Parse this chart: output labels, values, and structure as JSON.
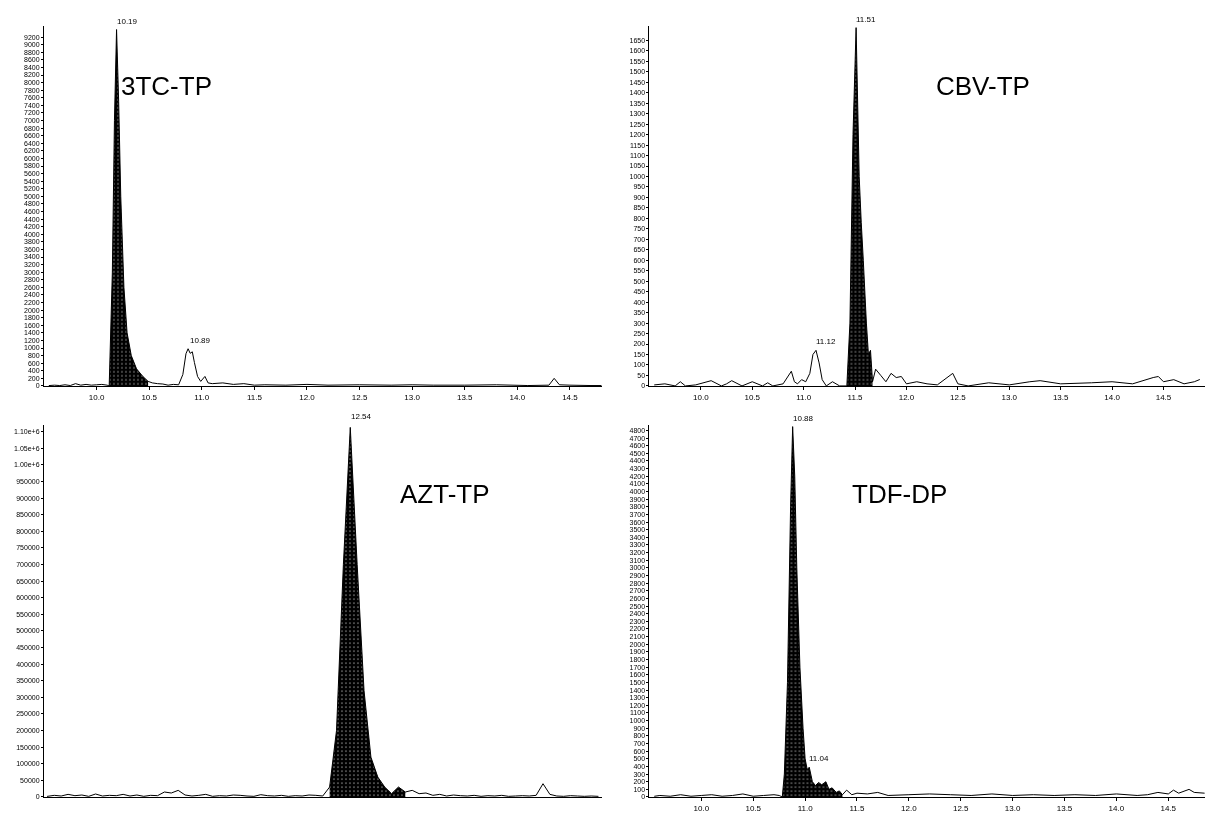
{
  "chart_data": [
    {
      "type": "line",
      "title": "3TC-TP",
      "xlim": [
        9.5,
        14.8
      ],
      "ylim": [
        0,
        9500
      ],
      "xticks": [
        {
          "value": 10,
          "label": "10.0"
        },
        {
          "value": 10.5,
          "label": "10.5"
        },
        {
          "value": 11,
          "label": "11.0"
        },
        {
          "value": 11.5,
          "label": "11.5"
        },
        {
          "value": 12,
          "label": "12.0"
        },
        {
          "value": 12.5,
          "label": "12.5"
        },
        {
          "value": 13,
          "label": "13.0"
        },
        {
          "value": 13.5,
          "label": "13.5"
        },
        {
          "value": 14,
          "label": "14.0"
        },
        {
          "value": 14.5,
          "label": "14.5"
        }
      ],
      "yticks": [
        0,
        200,
        400,
        600,
        800,
        1000,
        1200,
        1400,
        1600,
        1800,
        2000,
        2200,
        2400,
        2600,
        2800,
        3000,
        3200,
        3400,
        3600,
        3800,
        4000,
        4200,
        4400,
        4600,
        4800,
        5000,
        5200,
        5400,
        5600,
        5800,
        6000,
        6200,
        6400,
        6600,
        6800,
        7000,
        7200,
        7400,
        7600,
        7800,
        8000,
        8200,
        8400,
        8600,
        8800,
        9000,
        9200
      ],
      "annotations": [
        {
          "text": "10.19",
          "x": 10.19,
          "y": 9400
        },
        {
          "text": "10.89",
          "x": 10.89,
          "y": 980
        }
      ],
      "series": [
        {
          "type": "area",
          "color": "#000000",
          "x": [
            10.12,
            10.15,
            10.17,
            10.19,
            10.21,
            10.23,
            10.26,
            10.29,
            10.33,
            10.38,
            10.44,
            10.49
          ],
          "values": [
            0,
            3000,
            7000,
            9400,
            7500,
            5000,
            2600,
            1400,
            800,
            450,
            250,
            120
          ]
        },
        {
          "color": "#000000",
          "x": [
            9.55,
            9.6,
            9.65,
            9.7,
            9.75,
            9.8,
            9.85,
            9.9,
            9.95,
            10.0,
            10.05,
            10.1,
            10.12,
            10.15,
            10.17,
            10.19,
            10.21,
            10.23,
            10.26,
            10.29,
            10.33,
            10.38,
            10.44,
            10.49,
            10.53,
            10.58,
            10.63,
            10.68,
            10.73,
            10.78,
            10.82,
            10.85,
            10.87,
            10.89,
            10.91,
            10.93,
            10.96,
            10.99,
            11.03,
            11.06,
            11.1,
            11.2,
            11.3,
            11.4,
            11.5,
            11.6,
            11.8,
            12.0,
            12.2,
            12.5,
            12.8,
            13.0,
            13.2,
            13.5,
            13.8,
            14.1,
            14.3,
            14.35,
            14.4,
            14.5,
            14.7,
            14.8
          ],
          "values": [
            10,
            20,
            10,
            30,
            10,
            60,
            20,
            40,
            20,
            30,
            40,
            20,
            0,
            3000,
            7000,
            9400,
            7500,
            5000,
            2600,
            1400,
            800,
            450,
            250,
            120,
            80,
            60,
            50,
            20,
            40,
            30,
            300,
            850,
            980,
            860,
            900,
            620,
            250,
            120,
            250,
            80,
            60,
            80,
            40,
            60,
            20,
            30,
            20,
            40,
            20,
            30,
            20,
            30,
            20,
            20,
            30,
            10,
            20,
            200,
            30,
            20,
            10,
            10
          ]
        }
      ]
    },
    {
      "type": "line",
      "title": "CBV-TP",
      "xlim": [
        9.5,
        14.9
      ],
      "ylim": [
        0,
        1720
      ],
      "xticks": [
        {
          "value": 10,
          "label": "10.0"
        },
        {
          "value": 10.5,
          "label": "10.5"
        },
        {
          "value": 11,
          "label": "11.0"
        },
        {
          "value": 11.5,
          "label": "11.5"
        },
        {
          "value": 12,
          "label": "12.0"
        },
        {
          "value": 12.5,
          "label": "12.5"
        },
        {
          "value": 13,
          "label": "13.0"
        },
        {
          "value": 13.5,
          "label": "13.5"
        },
        {
          "value": 14,
          "label": "14.0"
        },
        {
          "value": 14.5,
          "label": "14.5"
        }
      ],
      "yticks": [
        0,
        50,
        100,
        150,
        200,
        250,
        300,
        350,
        400,
        450,
        500,
        550,
        600,
        650,
        700,
        750,
        800,
        850,
        900,
        950,
        1000,
        1050,
        1100,
        1150,
        1200,
        1250,
        1300,
        1350,
        1400,
        1450,
        1500,
        1550,
        1600,
        1650
      ],
      "annotations": [
        {
          "text": "11.51",
          "x": 11.51,
          "y": 1711
        },
        {
          "text": "11.12",
          "x": 11.12,
          "y": 170
        }
      ],
      "series": [
        {
          "type": "area",
          "color": "#000000",
          "x": [
            11.42,
            11.45,
            11.48,
            11.51,
            11.54,
            11.56,
            11.58,
            11.61,
            11.63,
            11.65,
            11.67
          ],
          "values": [
            0,
            300,
            1200,
            1711,
            1000,
            780,
            600,
            300,
            150,
            170,
            20
          ]
        },
        {
          "color": "#000000",
          "x": [
            9.55,
            9.65,
            9.75,
            9.8,
            9.85,
            9.95,
            10.1,
            10.2,
            10.25,
            10.3,
            10.4,
            10.5,
            10.6,
            10.65,
            10.7,
            10.8,
            10.88,
            10.91,
            10.94,
            10.98,
            11.02,
            11.06,
            11.09,
            11.12,
            11.15,
            11.18,
            11.22,
            11.28,
            11.35,
            11.42,
            11.45,
            11.48,
            11.51,
            11.54,
            11.56,
            11.58,
            11.61,
            11.63,
            11.65,
            11.67,
            11.7,
            11.75,
            11.8,
            11.85,
            11.9,
            11.95,
            12.0,
            12.1,
            12.2,
            12.3,
            12.45,
            12.5,
            12.6,
            12.8,
            13.0,
            13.2,
            13.3,
            13.5,
            13.8,
            14.0,
            14.2,
            14.4,
            14.45,
            14.5,
            14.6,
            14.7,
            14.8,
            14.85
          ],
          "values": [
            5,
            10,
            0,
            20,
            0,
            5,
            25,
            0,
            10,
            25,
            0,
            20,
            0,
            15,
            0,
            10,
            70,
            20,
            10,
            30,
            20,
            60,
            150,
            170,
            110,
            30,
            0,
            20,
            0,
            0,
            300,
            1200,
            1711,
            1000,
            780,
            600,
            300,
            150,
            170,
            20,
            80,
            50,
            20,
            60,
            40,
            45,
            10,
            20,
            10,
            5,
            60,
            10,
            0,
            15,
            5,
            20,
            25,
            10,
            15,
            20,
            10,
            40,
            45,
            20,
            30,
            10,
            20,
            30
          ]
        }
      ]
    },
    {
      "type": "line",
      "title": "AZT-TP",
      "ylim": [
        0,
        1120000
      ],
      "tick_labels": "y",
      "categories": [
        null,
        null,
        null,
        null,
        null,
        null,
        null,
        null,
        null,
        null,
        null,
        null,
        null,
        null,
        null,
        null,
        null,
        null,
        null,
        null,
        null,
        null,
        null,
        null,
        null,
        null,
        null,
        null,
        null,
        null,
        null,
        null,
        null,
        null,
        null,
        null,
        null,
        null,
        null,
        null,
        null,
        null,
        null,
        null,
        null,
        null,
        null,
        null,
        null,
        null,
        null,
        null,
        null,
        null,
        null,
        null,
        null,
        null,
        null,
        null,
        null,
        null,
        null,
        null,
        null,
        null,
        null,
        null,
        null,
        null,
        null,
        null,
        null,
        null,
        null,
        null,
        null,
        null,
        null,
        null,
        null
      ],
      "yticks": [
        0,
        50000,
        100000,
        150000,
        200000,
        250000,
        300000,
        350000,
        400000,
        450000,
        500000,
        550000,
        600000,
        650000,
        700000,
        750000,
        800000,
        850000,
        900000,
        950000,
        {
          "value": 1000000,
          "label": "1.00e+6"
        },
        {
          "value": 1050000,
          "label": "1.05e+6"
        },
        {
          "value": 1100000,
          "label": "1.10e+6"
        }
      ],
      "annotations": [
        "12.54"
      ],
      "series": [
        {
          "type": "area",
          "color": "#000000",
          "values": [
            null,
            null,
            null,
            null,
            null,
            null,
            null,
            null,
            null,
            null,
            null,
            null,
            null,
            null,
            null,
            null,
            null,
            null,
            null,
            null,
            null,
            null,
            null,
            null,
            null,
            null,
            null,
            null,
            null,
            null,
            null,
            null,
            null,
            null,
            null,
            null,
            null,
            null,
            null,
            null,
            null,
            30000,
            200000,
            700000,
            1113000,
            700000,
            320000,
            120000,
            60000,
            30000,
            10000,
            30000,
            15000,
            null,
            null,
            null,
            null,
            null,
            null,
            null,
            null,
            null,
            null,
            null,
            null,
            null,
            null,
            null,
            null,
            null,
            null,
            null,
            null,
            null,
            null,
            null,
            null,
            null,
            null,
            null,
            null
          ]
        },
        {
          "color": "#000000",
          "values": [
            2000,
            5000,
            3000,
            8000,
            4000,
            6000,
            2000,
            9000,
            3000,
            5000,
            4000,
            8000,
            3000,
            6000,
            2000,
            5000,
            4000,
            15000,
            12000,
            20000,
            6000,
            3000,
            5000,
            8000,
            2000,
            4000,
            3000,
            6000,
            5000,
            3000,
            2000,
            7000,
            4000,
            3000,
            5000,
            2000,
            4000,
            3000,
            6000,
            5000,
            3000,
            30000,
            200000,
            700000,
            1113000,
            700000,
            320000,
            120000,
            60000,
            30000,
            10000,
            30000,
            15000,
            20000,
            10000,
            12000,
            5000,
            8000,
            3000,
            6000,
            4000,
            3000,
            5000,
            2000,
            4000,
            3000,
            5000,
            2000,
            3000,
            4000,
            3000,
            5000,
            40000,
            8000,
            3000,
            2000,
            4000,
            3000,
            2000,
            3000,
            2000
          ]
        }
      ]
    },
    {
      "type": "line",
      "title": "TDF-DP",
      "xlim": [
        9.5,
        14.85
      ],
      "ylim": [
        0,
        4870
      ],
      "xticks": [
        {
          "value": 10,
          "label": "10.0"
        },
        {
          "value": 10.5,
          "label": "10.5"
        },
        {
          "value": 11,
          "label": "11.0"
        },
        {
          "value": 11.5,
          "label": "11.5"
        },
        {
          "value": 12,
          "label": "12.0"
        },
        {
          "value": 12.5,
          "label": "12.5"
        },
        {
          "value": 13,
          "label": "13.0"
        },
        {
          "value": 13.5,
          "label": "13.5"
        },
        {
          "value": 14,
          "label": "14.0"
        },
        {
          "value": 14.5,
          "label": "14.5"
        }
      ],
      "yticks": [
        0,
        100,
        200,
        300,
        400,
        500,
        600,
        700,
        800,
        900,
        1000,
        1100,
        1200,
        1300,
        1400,
        1500,
        1600,
        1700,
        1800,
        1900,
        2000,
        2100,
        2200,
        2300,
        2400,
        2500,
        2600,
        2700,
        2800,
        2900,
        3000,
        3100,
        3200,
        3300,
        3400,
        3500,
        3600,
        3700,
        3800,
        3900,
        4000,
        4100,
        4200,
        4300,
        4400,
        4500,
        4600,
        4700,
        4800
      ],
      "annotations": [
        {
          "text": "10.88",
          "x": 10.88,
          "y": 4850
        },
        {
          "text": "11.04",
          "x": 11.04,
          "y": 390
        }
      ],
      "series": [
        {
          "type": "area",
          "color": "#000000",
          "x": [
            10.78,
            10.8,
            10.83,
            10.86,
            10.88,
            10.9,
            10.92,
            10.95,
            10.98,
            11.0,
            11.02,
            11.04,
            11.07,
            11.1,
            11.13,
            11.16,
            11.2,
            11.23,
            11.26,
            11.3,
            11.33,
            11.36
          ],
          "values": [
            0,
            300,
            1500,
            3800,
            4850,
            4200,
            3000,
            1700,
            900,
            500,
            360,
            390,
            200,
            150,
            190,
            160,
            200,
            100,
            120,
            60,
            80,
            30
          ]
        },
        {
          "color": "#000000",
          "x": [
            9.55,
            9.6,
            9.7,
            9.8,
            9.9,
            10.0,
            10.1,
            10.2,
            10.3,
            10.4,
            10.5,
            10.6,
            10.7,
            10.75,
            10.78,
            10.8,
            10.83,
            10.86,
            10.88,
            10.9,
            10.92,
            10.95,
            10.98,
            11.0,
            11.02,
            11.04,
            11.07,
            11.1,
            11.13,
            11.16,
            11.2,
            11.23,
            11.26,
            11.3,
            11.33,
            11.36,
            11.4,
            11.45,
            11.5,
            11.6,
            11.7,
            11.8,
            12.0,
            12.2,
            12.4,
            12.6,
            12.8,
            13.0,
            13.2,
            13.4,
            13.6,
            13.8,
            14.0,
            14.2,
            14.3,
            14.4,
            14.5,
            14.55,
            14.6,
            14.7,
            14.75,
            14.85
          ],
          "values": [
            10,
            20,
            10,
            30,
            10,
            20,
            30,
            10,
            20,
            40,
            10,
            20,
            30,
            20,
            0,
            300,
            1500,
            3800,
            4850,
            4200,
            3000,
            1700,
            900,
            500,
            360,
            390,
            200,
            150,
            190,
            160,
            200,
            100,
            120,
            60,
            80,
            30,
            90,
            30,
            50,
            40,
            60,
            20,
            30,
            40,
            30,
            20,
            40,
            20,
            30,
            20,
            30,
            20,
            40,
            20,
            30,
            60,
            40,
            90,
            50,
            100,
            60,
            50
          ]
        }
      ]
    }
  ]
}
